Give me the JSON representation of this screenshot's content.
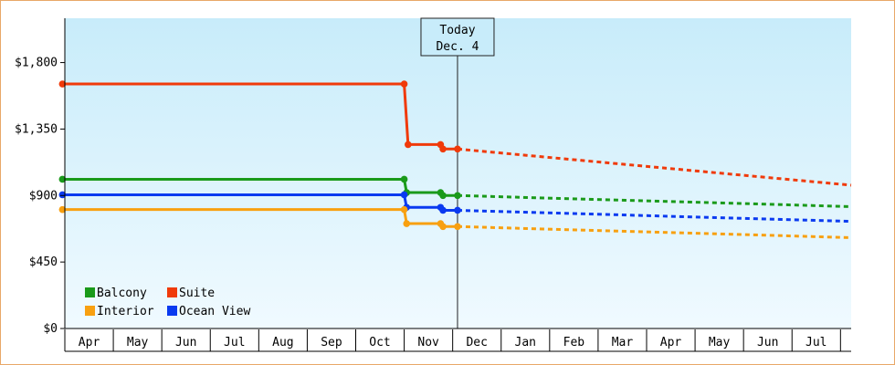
{
  "chart_data": {
    "type": "line",
    "step": true,
    "y_ticks": [
      "$0",
      "$450",
      "$900",
      "$1,350",
      "$1,800"
    ],
    "y_tick_values": [
      0,
      450,
      900,
      1350,
      1800
    ],
    "ylim": [
      0,
      2100
    ],
    "x_labels": [
      "Apr",
      "May",
      "Jun",
      "Jul",
      "Aug",
      "Sep",
      "Oct",
      "Nov",
      "Dec",
      "Jan",
      "Feb",
      "Mar",
      "Apr",
      "May",
      "Jun",
      "Jul"
    ],
    "xlim": [
      0,
      16.22
    ],
    "today": {
      "line1": "Today",
      "line2": "Dec. 4",
      "x": 8.1
    },
    "legend": [
      {
        "name": "Balcony",
        "color": "#1a9a1a"
      },
      {
        "name": "Suite",
        "color": "#f03a0a"
      },
      {
        "name": "Interior",
        "color": "#f8a010"
      },
      {
        "name": "Ocean View",
        "color": "#0a3af0"
      }
    ],
    "series": [
      {
        "name": "Suite",
        "color": "#f03a0a",
        "history": [
          [
            -0.05,
            1655
          ],
          [
            7.0,
            1655
          ],
          [
            7.08,
            1245
          ],
          [
            7.75,
            1245
          ],
          [
            7.8,
            1215
          ],
          [
            8.1,
            1215
          ]
        ],
        "markers": [
          [
            -0.05,
            1655
          ],
          [
            7.0,
            1655
          ],
          [
            7.08,
            1245
          ],
          [
            7.75,
            1245
          ],
          [
            7.8,
            1215
          ],
          [
            8.1,
            1215
          ]
        ],
        "forecast": [
          [
            8.1,
            1215
          ],
          [
            16.22,
            970
          ]
        ]
      },
      {
        "name": "Balcony",
        "color": "#1a9a1a",
        "history": [
          [
            -0.05,
            1010
          ],
          [
            7.0,
            1010
          ],
          [
            7.05,
            920
          ],
          [
            7.75,
            920
          ],
          [
            7.8,
            900
          ],
          [
            8.1,
            900
          ]
        ],
        "markers": [
          [
            -0.05,
            1010
          ],
          [
            7.0,
            1010
          ],
          [
            7.05,
            920
          ],
          [
            7.75,
            920
          ],
          [
            7.8,
            900
          ],
          [
            8.1,
            900
          ]
        ],
        "forecast": [
          [
            8.1,
            900
          ],
          [
            16.22,
            825
          ]
        ]
      },
      {
        "name": "Ocean View",
        "color": "#0a3af0",
        "history": [
          [
            -0.05,
            905
          ],
          [
            7.0,
            905
          ],
          [
            7.05,
            820
          ],
          [
            7.75,
            820
          ],
          [
            7.8,
            800
          ],
          [
            8.1,
            800
          ]
        ],
        "markers": [
          [
            -0.05,
            905
          ],
          [
            7.0,
            905
          ],
          [
            7.05,
            820
          ],
          [
            7.75,
            820
          ],
          [
            7.8,
            800
          ],
          [
            8.1,
            800
          ]
        ],
        "forecast": [
          [
            8.1,
            800
          ],
          [
            16.22,
            725
          ]
        ]
      },
      {
        "name": "Interior",
        "color": "#f8a010",
        "history": [
          [
            -0.05,
            805
          ],
          [
            7.0,
            805
          ],
          [
            7.05,
            710
          ],
          [
            7.75,
            710
          ],
          [
            7.8,
            690
          ],
          [
            8.1,
            690
          ]
        ],
        "markers": [
          [
            -0.05,
            805
          ],
          [
            7.0,
            805
          ],
          [
            7.05,
            710
          ],
          [
            7.75,
            710
          ],
          [
            7.8,
            690
          ],
          [
            8.1,
            690
          ]
        ],
        "forecast": [
          [
            8.1,
            690
          ],
          [
            16.22,
            615
          ]
        ]
      }
    ]
  }
}
